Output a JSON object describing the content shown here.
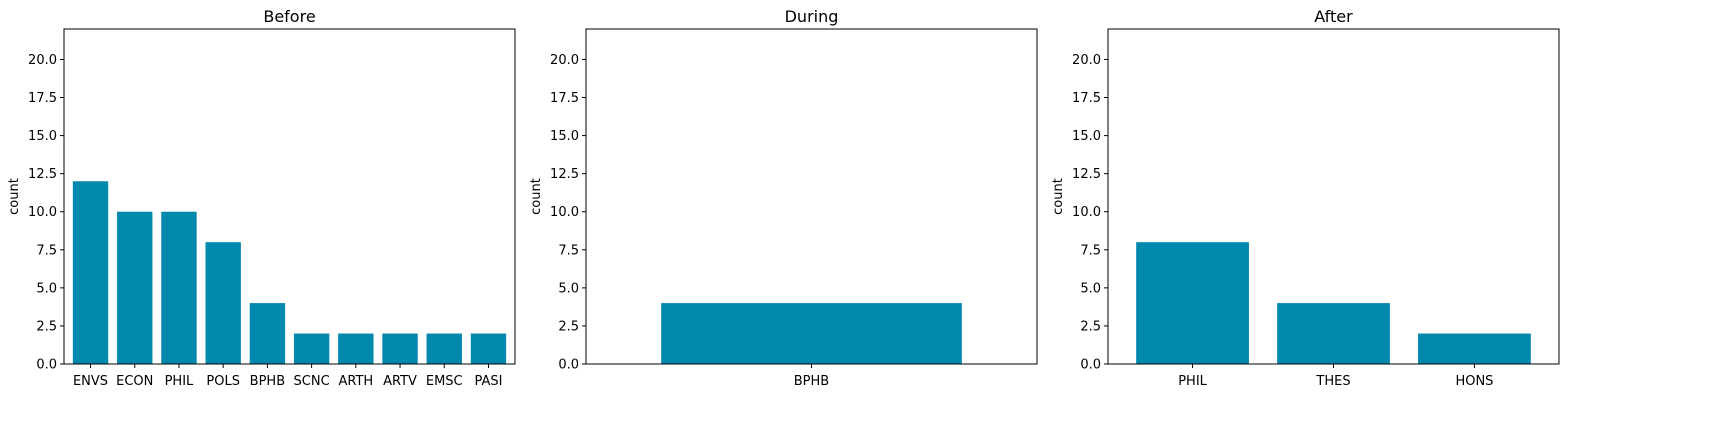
{
  "chart_data": [
    {
      "type": "bar",
      "title": "Before",
      "ylabel": "count",
      "xlabel": "",
      "ylim": [
        0,
        22
      ],
      "yticks": [
        "0.0",
        "2.5",
        "5.0",
        "7.5",
        "10.0",
        "12.5",
        "15.0",
        "17.5",
        "20.0"
      ],
      "categories": [
        "ENVS",
        "ECON",
        "PHIL",
        "POLS",
        "BPHB",
        "SCNC",
        "ARTH",
        "ARTV",
        "EMSC",
        "PASI"
      ],
      "values": [
        12,
        10,
        10,
        8,
        4,
        2,
        2,
        2,
        2,
        2
      ],
      "color": "#0088ad"
    },
    {
      "type": "bar",
      "title": "During",
      "ylabel": "count",
      "xlabel": "",
      "ylim": [
        0,
        22
      ],
      "yticks": [
        "0.0",
        "2.5",
        "5.0",
        "7.5",
        "10.0",
        "12.5",
        "15.0",
        "17.5",
        "20.0"
      ],
      "categories": [
        "BPHB"
      ],
      "values": [
        4
      ],
      "color": "#0088ad"
    },
    {
      "type": "bar",
      "title": "After",
      "ylabel": "count",
      "xlabel": "",
      "ylim": [
        0,
        22
      ],
      "yticks": [
        "0.0",
        "2.5",
        "5.0",
        "7.5",
        "10.0",
        "12.5",
        "15.0",
        "17.5",
        "20.0"
      ],
      "categories": [
        "PHIL",
        "THES",
        "HONS"
      ],
      "values": [
        8,
        4,
        2
      ],
      "color": "#0088ad"
    }
  ]
}
